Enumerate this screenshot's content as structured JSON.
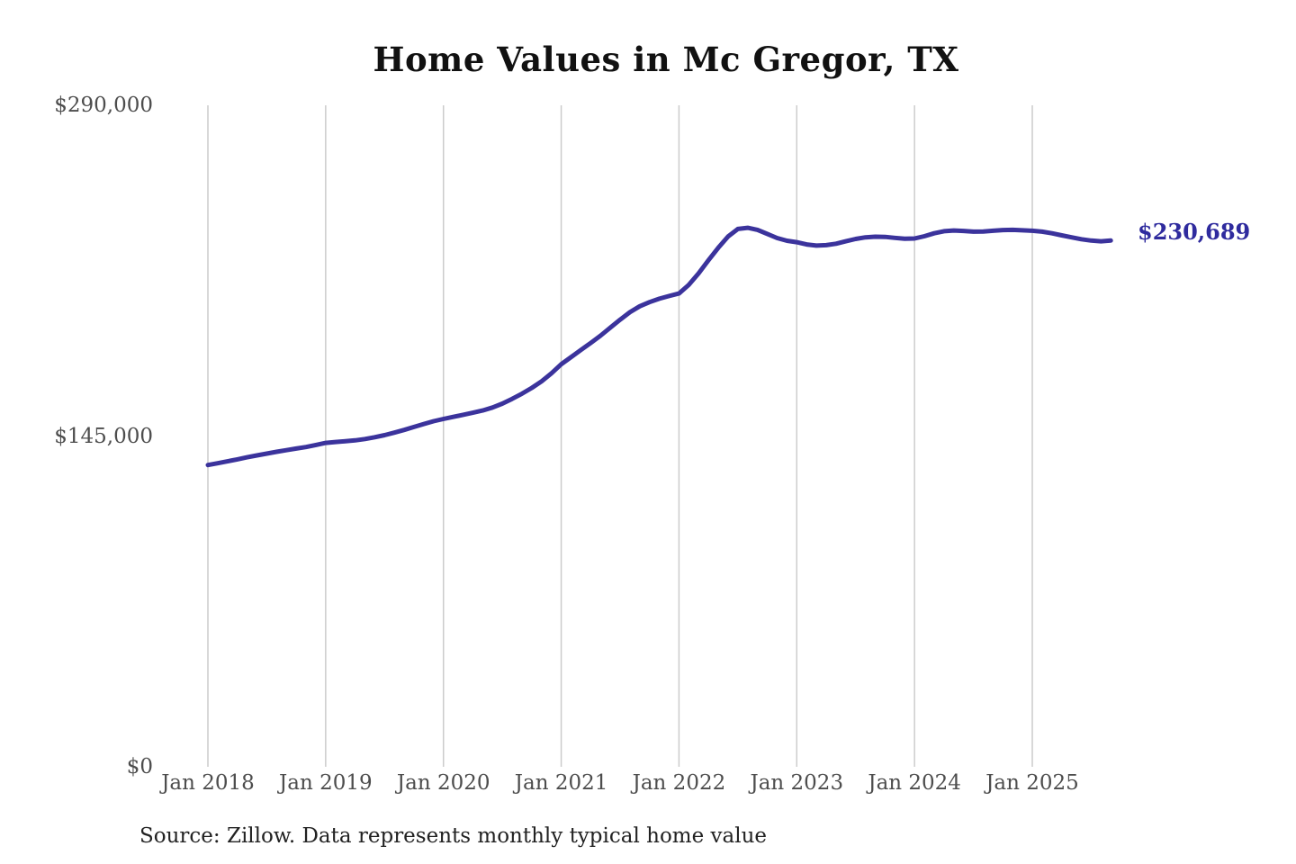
{
  "page": {
    "title": "Home Values in Mc Gregor, TX",
    "source_note": "Source: Zillow. Data represents monthly typical home value",
    "current_value_label": "$230,689"
  },
  "colors": {
    "line": "#3b339c",
    "end_label": "#2f2b9e",
    "gridline": "#cccccc",
    "tick_text": "#4d4d4d",
    "title_text": "#111111",
    "source_text": "#222222",
    "background": "#ffffff"
  },
  "chart_data": {
    "type": "line",
    "title": "Home Values in Mc Gregor, TX",
    "xlabel": "",
    "ylabel": "",
    "ylim": [
      0,
      290000
    ],
    "grid": "vertical-only",
    "legend": "none",
    "y_ticks": [
      {
        "value": 0,
        "label": "$0"
      },
      {
        "value": 145000,
        "label": "$145,000"
      },
      {
        "value": 290000,
        "label": "$290,000"
      }
    ],
    "x_tick_labels": [
      "Jan 2018",
      "Jan 2019",
      "Jan 2020",
      "Jan 2021",
      "Jan 2022",
      "Jan 2023",
      "Jan 2024",
      "Jan 2025"
    ],
    "end_annotation": {
      "label": "$230,689",
      "value": 230689,
      "x": "2025-09"
    },
    "series": [
      {
        "name": "Monthly typical home value",
        "unit": "USD",
        "x": [
          "2018-01",
          "2018-02",
          "2018-03",
          "2018-04",
          "2018-05",
          "2018-06",
          "2018-07",
          "2018-08",
          "2018-09",
          "2018-10",
          "2018-11",
          "2018-12",
          "2019-01",
          "2019-02",
          "2019-03",
          "2019-04",
          "2019-05",
          "2019-06",
          "2019-07",
          "2019-08",
          "2019-09",
          "2019-10",
          "2019-11",
          "2019-12",
          "2020-01",
          "2020-02",
          "2020-03",
          "2020-04",
          "2020-05",
          "2020-06",
          "2020-07",
          "2020-08",
          "2020-09",
          "2020-10",
          "2020-11",
          "2020-12",
          "2021-01",
          "2021-02",
          "2021-03",
          "2021-04",
          "2021-05",
          "2021-06",
          "2021-07",
          "2021-08",
          "2021-09",
          "2021-10",
          "2021-11",
          "2021-12",
          "2022-01",
          "2022-02",
          "2022-03",
          "2022-04",
          "2022-05",
          "2022-06",
          "2022-07",
          "2022-08",
          "2022-09",
          "2022-10",
          "2022-11",
          "2022-12",
          "2023-01",
          "2023-02",
          "2023-03",
          "2023-04",
          "2023-05",
          "2023-06",
          "2023-07",
          "2023-08",
          "2023-09",
          "2023-10",
          "2023-11",
          "2023-12",
          "2024-01",
          "2024-02",
          "2024-03",
          "2024-04",
          "2024-05",
          "2024-06",
          "2024-07",
          "2024-08",
          "2024-09",
          "2024-10",
          "2024-11",
          "2024-12",
          "2025-01",
          "2025-02",
          "2025-03",
          "2025-04",
          "2025-05",
          "2025-06",
          "2025-07",
          "2025-08",
          "2025-09"
        ],
        "values": [
          132300,
          133100,
          133900,
          134800,
          135700,
          136500,
          137300,
          138100,
          138800,
          139500,
          140200,
          141100,
          142000,
          142400,
          142700,
          143100,
          143700,
          144500,
          145400,
          146500,
          147700,
          149000,
          150300,
          151500,
          152500,
          153400,
          154300,
          155200,
          156200,
          157500,
          159200,
          161300,
          163600,
          166100,
          169000,
          172500,
          176500,
          179600,
          182700,
          185800,
          189000,
          192500,
          196000,
          199300,
          201900,
          203700,
          205200,
          206400,
          207500,
          211300,
          216300,
          222000,
          227500,
          232500,
          235800,
          236300,
          235400,
          233600,
          231800,
          230600,
          230000,
          229000,
          228500,
          228700,
          229300,
          230400,
          231400,
          232100,
          232400,
          232300,
          231900,
          231500,
          231600,
          232600,
          233900,
          234800,
          235100,
          234900,
          234600,
          234700,
          235000,
          235300,
          235400,
          235200,
          235000,
          234600,
          233900,
          233000,
          232100,
          231300,
          230700,
          230400,
          230689
        ]
      }
    ]
  }
}
